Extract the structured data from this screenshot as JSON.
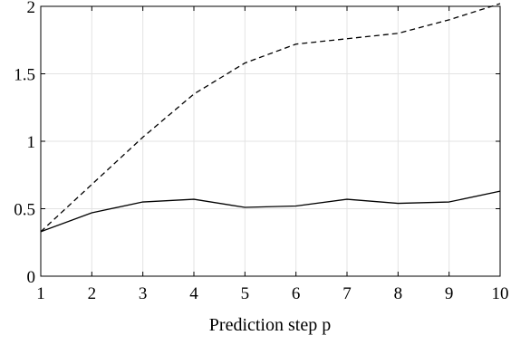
{
  "chart_data": {
    "type": "line",
    "title": "",
    "xlabel": "Prediction step p",
    "ylabel": "",
    "x": [
      1,
      2,
      3,
      4,
      5,
      6,
      7,
      8,
      9,
      10
    ],
    "xlim": [
      1,
      10
    ],
    "ylim": [
      0,
      2
    ],
    "xticks": [
      "1",
      "2",
      "3",
      "4",
      "5",
      "6",
      "7",
      "8",
      "9",
      "10"
    ],
    "yticks": [
      "0",
      "0.5",
      "1",
      "1.5",
      "2"
    ],
    "grid": true,
    "legend": "none",
    "series": [
      {
        "style": "dashed",
        "color": "#000000",
        "values": [
          0.33,
          0.68,
          1.03,
          1.35,
          1.58,
          1.72,
          1.76,
          1.8,
          1.9,
          2.02
        ]
      },
      {
        "style": "solid",
        "color": "#000000",
        "values": [
          0.33,
          0.47,
          0.55,
          0.57,
          0.51,
          0.52,
          0.57,
          0.54,
          0.55,
          0.63
        ]
      }
    ]
  }
}
